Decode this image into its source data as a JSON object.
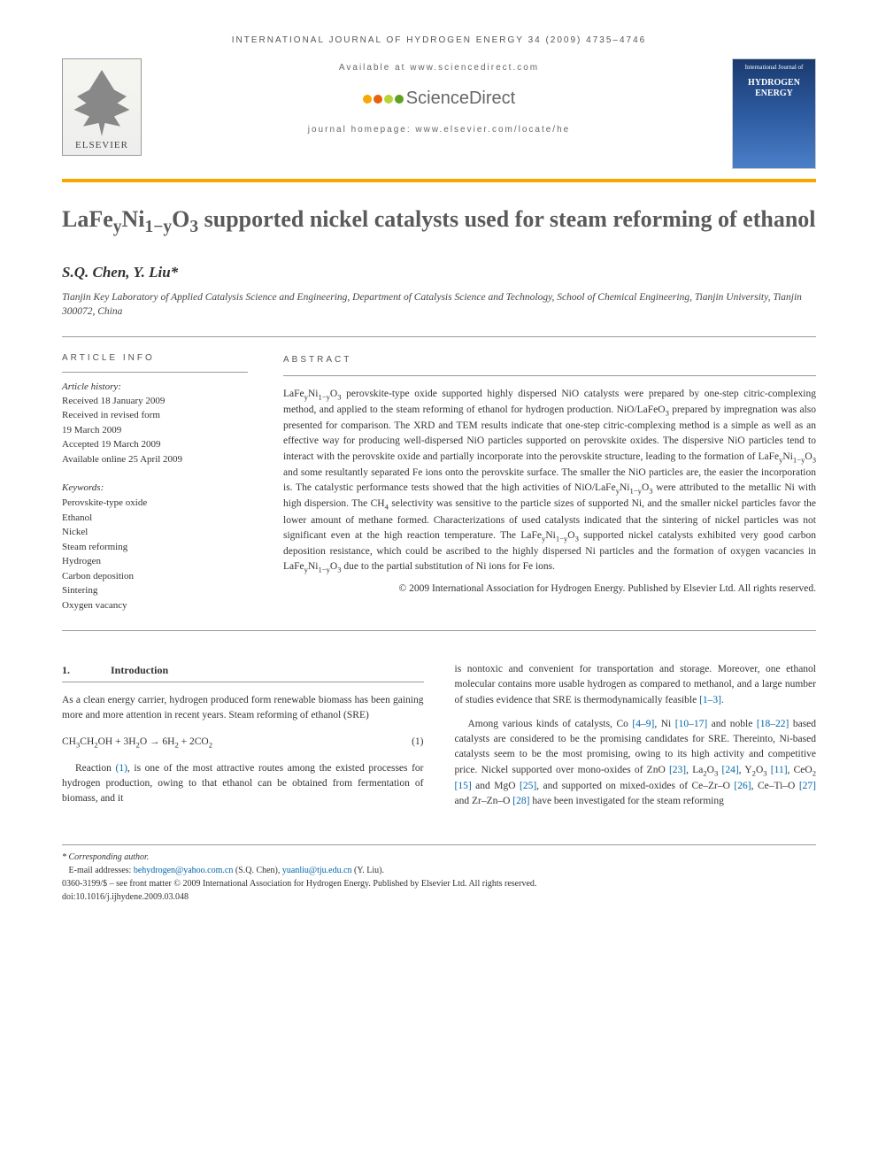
{
  "running_head": "INTERNATIONAL JOURNAL OF HYDROGEN ENERGY 34 (2009) 4735–4746",
  "header": {
    "available_at": "Available at www.sciencedirect.com",
    "sd_brand": "ScienceDirect",
    "homepage": "journal homepage: www.elsevier.com/locate/he",
    "elsevier": "ELSEVIER",
    "cover_small": "International Journal of",
    "cover_title": "HYDROGEN ENERGY"
  },
  "sd_colors": [
    "#f7a800",
    "#e8620c",
    "#b8d432",
    "#5fa021"
  ],
  "title": "LaFeyNi1−yO3 supported nickel catalysts used for steam reforming of ethanol",
  "authors": "S.Q. Chen, Y. Liu*",
  "affiliation": "Tianjin Key Laboratory of Applied Catalysis Science and Engineering, Department of Catalysis Science and Technology, School of Chemical Engineering, Tianjin University, Tianjin 300072, China",
  "info": {
    "heading": "ARTICLE INFO",
    "history_label": "Article history:",
    "history": [
      "Received 18 January 2009",
      "Received in revised form",
      "19 March 2009",
      "Accepted 19 March 2009",
      "Available online 25 April 2009"
    ],
    "keywords_label": "Keywords:",
    "keywords": [
      "Perovskite-type oxide",
      "Ethanol",
      "Nickel",
      "Steam reforming",
      "Hydrogen",
      "Carbon deposition",
      "Sintering",
      "Oxygen vacancy"
    ]
  },
  "abstract": {
    "heading": "ABSTRACT",
    "text": "LaFeyNi1−yO3 perovskite-type oxide supported highly dispersed NiO catalysts were prepared by one-step citric-complexing method, and applied to the steam reforming of ethanol for hydrogen production. NiO/LaFeO3 prepared by impregnation was also presented for comparison. The XRD and TEM results indicate that one-step citric-complexing method is a simple as well as an effective way for producing well-dispersed NiO particles supported on perovskite oxides. The dispersive NiO particles tend to interact with the perovskite oxide and partially incorporate into the perovskite structure, leading to the formation of LaFeyNi1−yO3 and some resultantly separated Fe ions onto the perovskite surface. The smaller the NiO particles are, the easier the incorporation is. The catalystic performance tests showed that the high activities of NiO/LaFeyNi1−yO3 were attributed to the metallic Ni with high dispersion. The CH4 selectivity was sensitive to the particle sizes of supported Ni, and the smaller nickel particles favor the lower amount of methane formed. Characterizations of used catalysts indicated that the sintering of nickel particles was not significant even at the high reaction temperature. The LaFeyNi1−yO3 supported nickel catalysts exhibited very good carbon deposition resistance, which could be ascribed to the highly dispersed Ni particles and the formation of oxygen vacancies in LaFeyNi1−yO3 due to the partial substitution of Ni ions for Fe ions.",
    "copyright": "© 2009 International Association for Hydrogen Energy. Published by Elsevier Ltd. All rights reserved."
  },
  "section1": {
    "num": "1.",
    "title": "Introduction",
    "p1": "As a clean energy carrier, hydrogen produced form renewable biomass has been gaining more and more attention in recent years. Steam reforming of ethanol (SRE)",
    "equation": "CH3CH2OH + 3H2O → 6H2 + 2CO2",
    "eqnum": "(1)",
    "p2_a": "Reaction ",
    "p2_ref": "(1)",
    "p2_b": ", is one of the most attractive routes among the existed processes for hydrogen production, owing to that ethanol can be obtained from fermentation of biomass, and it",
    "p3_a": "is nontoxic and convenient for transportation and storage. Moreover, one ethanol molecular contains more usable hydrogen as compared to methanol, and a large number of studies evidence that SRE is thermodynamically feasible ",
    "p3_ref": "[1–3]",
    "p3_b": ".",
    "p4": "Among various kinds of catalysts, Co [4–9], Ni [10–17] and noble [18–22] based catalysts are considered to be the promising candidates for SRE. Thereinto, Ni-based catalysts seem to be the most promising, owing to its high activity and competitive price. Nickel supported over mono-oxides of ZnO [23], La2O3 [24], Y2O3 [11], CeO2 [15] and MgO [25], and supported on mixed-oxides of Ce–Zr–O [26], Ce–Ti–O [27] and Zr–Zn–O [28] have been investigated for the steam reforming"
  },
  "footnotes": {
    "corr": "* Corresponding author.",
    "emails_label": "E-mail addresses: ",
    "email1": "behydrogen@yahoo.com.cn",
    "email1_who": " (S.Q. Chen), ",
    "email2": "yuanliu@tju.edu.cn",
    "email2_who": " (Y. Liu).",
    "issn": "0360-3199/$ – see front matter © 2009 International Association for Hydrogen Energy. Published by Elsevier Ltd. All rights reserved.",
    "doi": "doi:10.1016/j.ijhydene.2009.03.048"
  }
}
